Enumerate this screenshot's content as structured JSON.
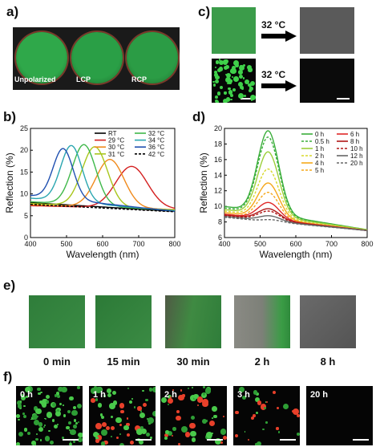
{
  "panels": {
    "a": {
      "label": "a)",
      "circles": [
        {
          "text": "Unpolarized",
          "color": "#2fa84a"
        },
        {
          "text": "LCP",
          "color": "#2a9f46"
        },
        {
          "text": "RCP",
          "color": "#2b9c45"
        }
      ]
    },
    "b": {
      "label": "b)"
    },
    "c": {
      "label": "c)",
      "arrow_label_1": "32 °C",
      "arrow_label_2": "32 °C"
    },
    "d": {
      "label": "d)"
    },
    "e": {
      "label": "e)",
      "captions": [
        "0 min",
        "15 min",
        "30 min",
        "2 h",
        "8 h"
      ]
    },
    "f": {
      "label": "f)",
      "time_labels": [
        "0 h",
        "1 h",
        "2 h",
        "3 h",
        "20 h"
      ]
    }
  },
  "chart_data": [
    {
      "type": "line",
      "panel": "b",
      "title": "",
      "xlabel": "Wavelength (nm)",
      "ylabel": "Reflection (%)",
      "xlim": [
        400,
        800
      ],
      "ylim": [
        0,
        25
      ],
      "xticks": [
        400,
        500,
        600,
        700,
        800
      ],
      "yticks": [
        0,
        5,
        10,
        15,
        20,
        25
      ],
      "legend_placement": "top-right",
      "series": [
        {
          "name": "RT",
          "color": "#000000",
          "dash": false,
          "peak_x": null,
          "peak_y": null,
          "base_start": 8.0,
          "base_end": 6.0
        },
        {
          "name": "29 °C",
          "color": "#d42020",
          "dash": false,
          "peak_x": 680,
          "peak_y": 16.3,
          "base_start": 7.3,
          "base_end": 6.5
        },
        {
          "name": "30 °C",
          "color": "#f08a1c",
          "dash": false,
          "peak_x": 620,
          "peak_y": 17.9,
          "base_start": 7.5,
          "base_end": 6.4
        },
        {
          "name": "31 °C",
          "color": "#a8c61c",
          "dash": false,
          "peak_x": 578,
          "peak_y": 20.8,
          "base_start": 7.8,
          "base_end": 6.3
        },
        {
          "name": "32 °C",
          "color": "#3fb84a",
          "dash": false,
          "peak_x": 548,
          "peak_y": 21.3,
          "base_start": 8.2,
          "base_end": 6.2
        },
        {
          "name": "34 °C",
          "color": "#2aa6b0",
          "dash": false,
          "peak_x": 513,
          "peak_y": 21.1,
          "base_start": 9.0,
          "base_end": 6.1
        },
        {
          "name": "36 °C",
          "color": "#2050b0",
          "dash": false,
          "peak_x": 490,
          "peak_y": 20.4,
          "base_start": 9.6,
          "base_end": 6.0
        },
        {
          "name": "42 °C",
          "color": "#000000",
          "dash": true,
          "peak_x": null,
          "peak_y": null,
          "base_start": 7.6,
          "base_end": 5.9
        }
      ]
    },
    {
      "type": "line",
      "panel": "d",
      "title": "",
      "xlabel": "Wavelength (nm)",
      "ylabel": "Reflection (%)",
      "xlim": [
        400,
        800
      ],
      "ylim": [
        6,
        20
      ],
      "xticks": [
        400,
        500,
        600,
        700,
        800
      ],
      "yticks": [
        6,
        8,
        10,
        12,
        14,
        16,
        18,
        20
      ],
      "legend_placement": "top-right",
      "series": [
        {
          "name": "0 h",
          "color": "#3aae3a",
          "dash": false,
          "peak_x": 522,
          "peak_y": 19.7,
          "base_start": 10.0,
          "base_end": 7.0
        },
        {
          "name": "0.5 h",
          "color": "#3aae3a",
          "dash": true,
          "peak_x": 522,
          "peak_y": 18.9,
          "base_start": 9.8,
          "base_end": 7.0
        },
        {
          "name": "1 h",
          "color": "#9bcf3a",
          "dash": false,
          "peak_x": 522,
          "peak_y": 17.0,
          "base_start": 9.6,
          "base_end": 7.0
        },
        {
          "name": "2 h",
          "color": "#d8d82a",
          "dash": true,
          "peak_x": 522,
          "peak_y": 14.8,
          "base_start": 9.4,
          "base_end": 6.9
        },
        {
          "name": "4 h",
          "color": "#f5a81c",
          "dash": false,
          "peak_x": 522,
          "peak_y": 13.0,
          "base_start": 9.2,
          "base_end": 6.9
        },
        {
          "name": "5 h",
          "color": "#f5a81c",
          "dash": true,
          "peak_x": 522,
          "peak_y": 11.8,
          "base_start": 9.0,
          "base_end": 6.9
        },
        {
          "name": "6 h",
          "color": "#e02828",
          "dash": false,
          "peak_x": 522,
          "peak_y": 10.5,
          "base_start": 9.0,
          "base_end": 6.9
        },
        {
          "name": "8 h",
          "color": "#b01818",
          "dash": false,
          "peak_x": 522,
          "peak_y": 9.7,
          "base_start": 8.9,
          "base_end": 6.9
        },
        {
          "name": "10 h",
          "color": "#b01818",
          "dash": true,
          "peak_x": 522,
          "peak_y": 9.4,
          "base_start": 8.8,
          "base_end": 6.9
        },
        {
          "name": "12 h",
          "color": "#666666",
          "dash": false,
          "peak_x": 522,
          "peak_y": 8.8,
          "base_start": 8.7,
          "base_end": 6.9
        },
        {
          "name": "20 h",
          "color": "#666666",
          "dash": true,
          "peak_x": 522,
          "peak_y": 8.3,
          "base_start": 8.6,
          "base_end": 6.9
        }
      ]
    }
  ]
}
